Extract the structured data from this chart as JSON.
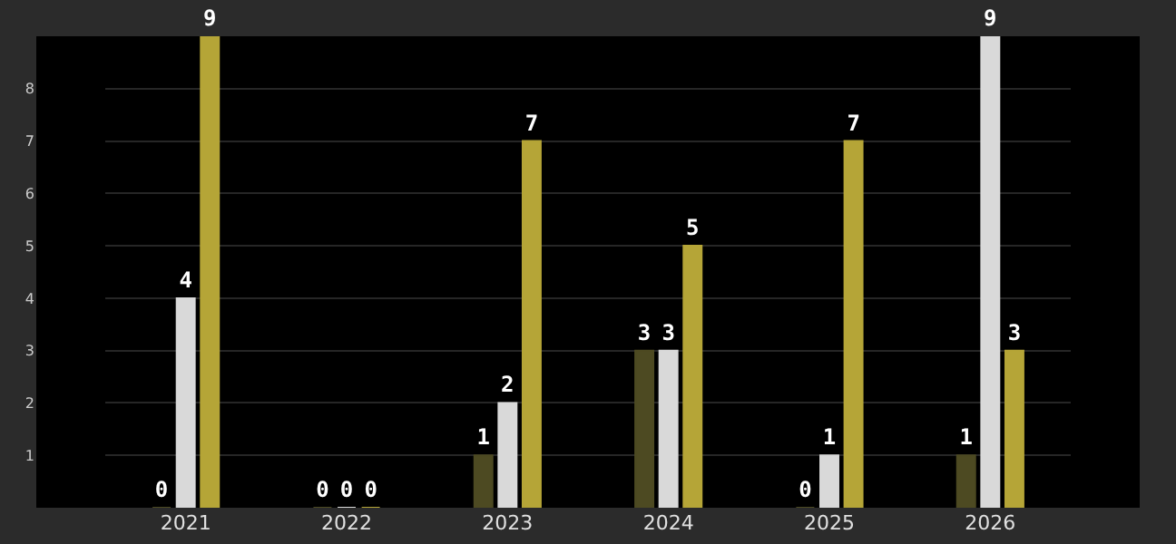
{
  "chart_data": {
    "type": "bar",
    "categories": [
      "2021",
      "2022",
      "2023",
      "2024",
      "2025",
      "2026"
    ],
    "series": [
      {
        "color": "#4d4a22",
        "values": [
          0,
          0,
          1,
          3,
          0,
          1
        ]
      },
      {
        "color": "#d9d9d9",
        "values": [
          4,
          0,
          2,
          3,
          1,
          9
        ]
      },
      {
        "color": "#b5a537",
        "values": [
          9,
          0,
          7,
          5,
          7,
          3
        ]
      }
    ],
    "ylim": [
      0,
      9
    ],
    "yticks": [
      1,
      2,
      3,
      4,
      5,
      6,
      7,
      8
    ],
    "grid": "y",
    "data_labels": true
  }
}
